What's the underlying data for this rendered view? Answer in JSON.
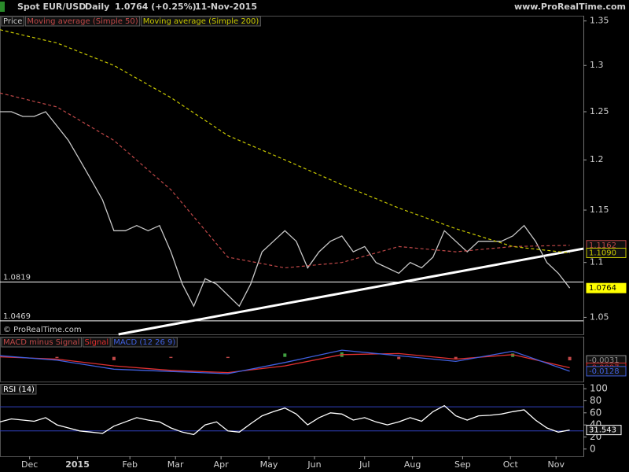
{
  "header": {
    "symbol": "Spot EUR/USD",
    "period": "Daily",
    "last": "1.0764 (+0.25%)",
    "date": "11-Nov-2015",
    "site": "www.ProRealTime.com",
    "copyright": "© ProRealTime.com"
  },
  "chart_data": [
    {
      "type": "line",
      "log": true,
      "xlim": [
        0,
        256
      ],
      "ylim": [
        1.035,
        1.356
      ],
      "yticks": [
        1.05,
        1.1,
        1.15,
        1.2,
        1.25,
        1.3,
        1.35
      ],
      "series": [
        {
          "name": "Price",
          "color": "#c8c8c8",
          "dashed": false,
          "x": [
            0,
            5,
            10,
            15,
            20,
            25,
            30,
            35,
            40,
            45,
            50,
            55,
            60,
            65,
            70,
            75,
            80,
            85,
            90,
            95,
            100,
            105,
            110,
            115,
            120,
            125,
            130,
            135,
            140,
            145,
            150,
            155,
            160,
            165,
            170,
            175,
            180,
            185,
            190,
            195,
            200,
            205,
            210,
            215,
            220,
            225,
            230,
            235,
            240,
            245,
            250
          ],
          "values": [
            1.25,
            1.25,
            1.245,
            1.245,
            1.25,
            1.235,
            1.22,
            1.2,
            1.18,
            1.16,
            1.13,
            1.13,
            1.135,
            1.13,
            1.135,
            1.11,
            1.08,
            1.06,
            1.085,
            1.08,
            1.07,
            1.06,
            1.08,
            1.11,
            1.12,
            1.13,
            1.12,
            1.095,
            1.11,
            1.12,
            1.125,
            1.11,
            1.115,
            1.1,
            1.095,
            1.09,
            1.1,
            1.095,
            1.105,
            1.13,
            1.12,
            1.11,
            1.12,
            1.12,
            1.12,
            1.125,
            1.135,
            1.12,
            1.1,
            1.09,
            1.0764
          ]
        },
        {
          "name": "Moving average (Simple 50)",
          "color": "#c04848",
          "dashed": true,
          "x": [
            0,
            25,
            50,
            75,
            100,
            125,
            150,
            175,
            200,
            225,
            250
          ],
          "values": [
            1.27,
            1.255,
            1.22,
            1.17,
            1.105,
            1.095,
            1.1,
            1.115,
            1.11,
            1.115,
            1.1162
          ]
        },
        {
          "name": "Moving average (Simple 200)",
          "color": "#c8c800",
          "dashed": true,
          "x": [
            0,
            25,
            50,
            75,
            100,
            125,
            150,
            175,
            200,
            225,
            250
          ],
          "values": [
            1.34,
            1.325,
            1.3,
            1.265,
            1.225,
            1.2,
            1.175,
            1.152,
            1.132,
            1.115,
            1.109
          ]
        }
      ],
      "levels": [
        {
          "value": 1.0819,
          "label": "1.0819"
        },
        {
          "value": 1.0469,
          "label": "1.0469"
        }
      ],
      "level_color": "#ffffff",
      "trendline": {
        "x": [
          52,
          256
        ],
        "values": [
          1.035,
          1.113
        ],
        "color": "#ffffff"
      },
      "tags": [
        {
          "value": 1.1162,
          "label": "1.1162",
          "color": "#c04848"
        },
        {
          "value": 1.109,
          "label": "1.1090",
          "color": "#c8c800"
        },
        {
          "value": 1.0764,
          "label": "1.0764",
          "color": "#ffff00"
        }
      ]
    },
    {
      "type": "line",
      "xlim": [
        0,
        256
      ],
      "ylim": [
        -0.022,
        0.018
      ],
      "series": [
        {
          "name": "MACD minus Signal",
          "color": "#c04848",
          "style": "bar",
          "x": [
            0,
            25,
            50,
            75,
            100,
            125,
            150,
            175,
            200,
            225,
            250
          ],
          "values": [
            0.001,
            -0.001,
            -0.003,
            -0.001,
            -0.001,
            0.003,
            0.004,
            -0.002,
            -0.002,
            0.003,
            -0.0031
          ]
        },
        {
          "name": "Signal",
          "color": "#e03030",
          "dashed": false,
          "x": [
            0,
            25,
            50,
            75,
            100,
            125,
            150,
            175,
            200,
            225,
            250
          ],
          "values": [
            0.0,
            -0.002,
            -0.008,
            -0.012,
            -0.014,
            -0.008,
            0.002,
            0.003,
            -0.002,
            0.002,
            -0.0097
          ]
        },
        {
          "name": "MACD (12 26 9)",
          "color": "#4060e0",
          "dashed": false,
          "x": [
            0,
            25,
            50,
            75,
            100,
            125,
            150,
            175,
            200,
            225,
            250
          ],
          "values": [
            0.001,
            -0.003,
            -0.011,
            -0.013,
            -0.015,
            -0.005,
            0.006,
            0.001,
            -0.004,
            0.005,
            -0.0128
          ]
        }
      ],
      "tags": [
        {
          "value": -0.0031,
          "label": "-0.0031",
          "color": "#909090"
        },
        {
          "value": -0.0097,
          "label": "-0.0097",
          "color": "#e03030"
        },
        {
          "value": -0.0128,
          "label": "-0.0128",
          "color": "#4060e0"
        }
      ]
    },
    {
      "type": "line",
      "xlim": [
        0,
        256
      ],
      "ylim": [
        -12,
        108
      ],
      "yticks": [
        0,
        20,
        40,
        60,
        80,
        100
      ],
      "xticks": [
        {
          "value": 13,
          "label": "Dec"
        },
        {
          "value": 34,
          "label": "2015"
        },
        {
          "value": 57,
          "label": "Feb"
        },
        {
          "value": 77,
          "label": "Mar"
        },
        {
          "value": 97,
          "label": "Apr"
        },
        {
          "value": 118,
          "label": "May"
        },
        {
          "value": 138,
          "label": "Jun"
        },
        {
          "value": 160,
          "label": "Jul"
        },
        {
          "value": 181,
          "label": "Aug"
        },
        {
          "value": 203,
          "label": "Sep"
        },
        {
          "value": 224,
          "label": "Oct"
        },
        {
          "value": 244,
          "label": "Nov"
        }
      ],
      "series": [
        {
          "name": "RSI (14)",
          "color": "#ffffff",
          "dashed": false,
          "x": [
            0,
            5,
            10,
            15,
            20,
            25,
            30,
            35,
            40,
            45,
            50,
            55,
            60,
            65,
            70,
            75,
            80,
            85,
            90,
            95,
            100,
            105,
            110,
            115,
            120,
            125,
            130,
            135,
            140,
            145,
            150,
            155,
            160,
            165,
            170,
            175,
            180,
            185,
            190,
            195,
            200,
            205,
            210,
            215,
            220,
            225,
            230,
            235,
            240,
            245,
            250
          ],
          "values": [
            45,
            50,
            48,
            46,
            52,
            40,
            35,
            30,
            28,
            26,
            38,
            45,
            52,
            48,
            45,
            35,
            28,
            24,
            40,
            45,
            30,
            28,
            42,
            55,
            62,
            68,
            58,
            40,
            52,
            60,
            58,
            48,
            52,
            45,
            40,
            45,
            52,
            46,
            62,
            72,
            55,
            48,
            55,
            56,
            58,
            62,
            65,
            48,
            35,
            28,
            31.543
          ]
        }
      ],
      "levels": [
        70,
        30
      ],
      "level_color": "#3040c0",
      "tags": [
        {
          "value": 31.543,
          "label": "31.543",
          "color": "#ffffff"
        }
      ]
    }
  ]
}
